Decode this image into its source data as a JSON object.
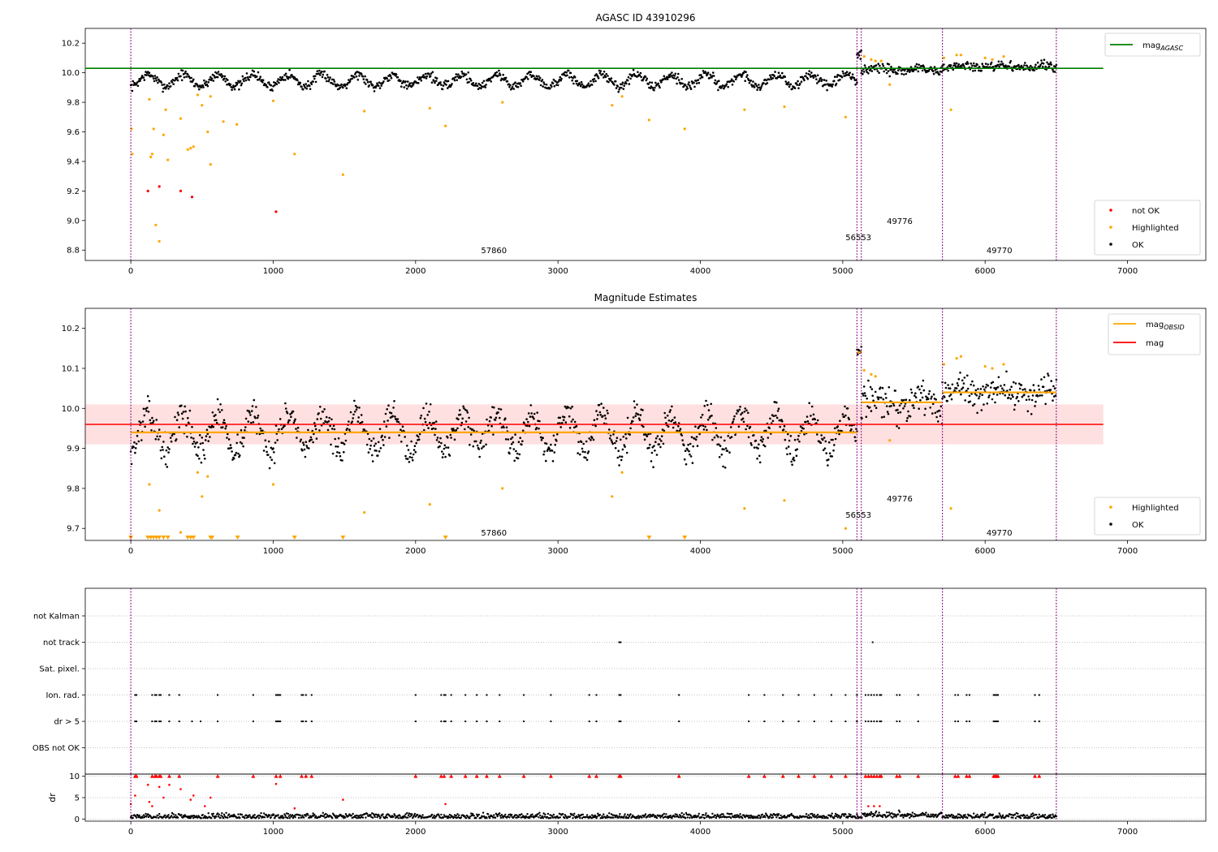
{
  "chart_data": [
    {
      "type": "scatter",
      "title": "AGASC ID 43910296",
      "xlabel": "",
      "ylabel": "",
      "xlim": [
        -320,
        7550
      ],
      "ylim": [
        8.73,
        10.3
      ],
      "xticks": [
        0,
        1000,
        2000,
        3000,
        4000,
        5000,
        6000,
        7000
      ],
      "yticks": [
        8.8,
        9.0,
        9.2,
        9.4,
        9.6,
        9.8,
        10.0,
        10.2
      ],
      "ytick_labels": [
        "8.8",
        "9.0",
        "9.2",
        "9.4",
        "9.6",
        "9.8",
        "10.0",
        "10.2"
      ],
      "grid": false,
      "legend_position": "top-right and bottom-right",
      "legend": [
        {
          "label": "mag",
          "sub": "AGASC",
          "kind": "line",
          "color": "#008000"
        },
        {
          "label": "not OK",
          "kind": "dot",
          "color": "#ff0000"
        },
        {
          "label": "Highlighted",
          "kind": "dot",
          "color": "#ffa500"
        },
        {
          "label": "OK",
          "kind": "dot",
          "color": "#000000"
        }
      ],
      "reference_line": {
        "name": "mag_AGASC",
        "y": 10.03,
        "x_range": [
          -320,
          6830
        ],
        "color": "#008000"
      },
      "obsid_boundaries": [
        0,
        5100,
        5130,
        5700,
        6500
      ],
      "obsid_labels": [
        {
          "text": "57860",
          "x": 2550,
          "y": 8.8
        },
        {
          "text": "56553",
          "x": 5110,
          "y": 8.89
        },
        {
          "text": "49776",
          "x": 5400,
          "y": 9.0
        },
        {
          "text": "49770",
          "x": 6100,
          "y": 8.8
        }
      ],
      "ok_segments": [
        {
          "x0": 0,
          "x1": 5100,
          "base": 9.948,
          "amp": 0.04,
          "period": 245,
          "noise": 0.016
        },
        {
          "x0": 5100,
          "x1": 5130,
          "base": 10.13,
          "amp": 0,
          "period": 1,
          "noise": 0.03
        },
        {
          "x0": 5130,
          "x1": 5700,
          "base": 10.02,
          "amp": 0.01,
          "period": 300,
          "noise": 0.018
        },
        {
          "x0": 5700,
          "x1": 6500,
          "base": 10.04,
          "amp": 0.008,
          "period": 300,
          "noise": 0.016
        }
      ],
      "highlighted_points": [
        [
          5,
          9.62
        ],
        [
          10,
          9.45
        ],
        [
          130,
          9.82
        ],
        [
          140,
          9.43
        ],
        [
          150,
          9.45
        ],
        [
          160,
          9.62
        ],
        [
          175,
          8.97
        ],
        [
          200,
          8.86
        ],
        [
          230,
          9.58
        ],
        [
          245,
          9.75
        ],
        [
          260,
          9.41
        ],
        [
          350,
          9.69
        ],
        [
          400,
          9.48
        ],
        [
          420,
          9.49
        ],
        [
          440,
          9.5
        ],
        [
          470,
          9.85
        ],
        [
          500,
          9.78
        ],
        [
          540,
          9.6
        ],
        [
          560,
          9.84
        ],
        [
          560,
          9.38
        ],
        [
          650,
          9.67
        ],
        [
          745,
          9.65
        ],
        [
          1000,
          9.81
        ],
        [
          1150,
          9.45
        ],
        [
          1490,
          9.31
        ],
        [
          1640,
          9.74
        ],
        [
          2100,
          9.76
        ],
        [
          2210,
          9.64
        ],
        [
          2610,
          9.8
        ],
        [
          3380,
          9.78
        ],
        [
          3450,
          9.84
        ],
        [
          3640,
          9.68
        ],
        [
          3890,
          9.62
        ],
        [
          4310,
          9.75
        ],
        [
          4590,
          9.77
        ],
        [
          5020,
          9.7
        ],
        [
          5150,
          10.11
        ],
        [
          5200,
          10.09
        ],
        [
          5230,
          10.08
        ],
        [
          5270,
          10.08
        ],
        [
          5330,
          9.92
        ],
        [
          5710,
          10.1
        ],
        [
          5760,
          9.75
        ],
        [
          5800,
          10.12
        ],
        [
          5830,
          10.12
        ],
        [
          6000,
          10.1
        ],
        [
          6050,
          10.09
        ],
        [
          6130,
          10.11
        ]
      ],
      "not_ok_points": [
        [
          120,
          9.2
        ],
        [
          200,
          9.23
        ],
        [
          350,
          9.2
        ],
        [
          430,
          9.16
        ],
        [
          1020,
          9.06
        ]
      ]
    },
    {
      "type": "scatter",
      "title": "Magnitude Estimates",
      "xlabel": "",
      "ylabel": "",
      "xlim": [
        -320,
        7550
      ],
      "ylim": [
        9.67,
        10.25
      ],
      "xticks": [
        0,
        1000,
        2000,
        3000,
        4000,
        5000,
        6000,
        7000
      ],
      "yticks": [
        9.7,
        9.8,
        9.9,
        10.0,
        10.1,
        10.2
      ],
      "ytick_labels": [
        "9.7",
        "9.8",
        "9.9",
        "10.0",
        "10.1",
        "10.2"
      ],
      "grid": false,
      "legend_position": "top-right and bottom-right",
      "legend": [
        {
          "label": "mag",
          "sub": "OBSID",
          "kind": "line",
          "color": "#ffa500"
        },
        {
          "label": "mag",
          "kind": "line",
          "color": "#ff0000"
        },
        {
          "label": "Highlighted",
          "kind": "dot",
          "color": "#ffa500"
        },
        {
          "label": "OK",
          "kind": "dot",
          "color": "#000000"
        }
      ],
      "mag_line": {
        "y": 9.96,
        "band": [
          9.91,
          10.01
        ],
        "x_range": [
          -320,
          6830
        ],
        "color": "#ff0000"
      },
      "obsid_mags": [
        {
          "x0": 0,
          "x1": 5100,
          "y": 9.94
        },
        {
          "x0": 5100,
          "x1": 5130,
          "y": 10.14
        },
        {
          "x0": 5130,
          "x1": 5700,
          "y": 10.015
        },
        {
          "x0": 5700,
          "x1": 6500,
          "y": 10.04
        }
      ],
      "obsid_boundaries": [
        0,
        5100,
        5130,
        5700,
        6500
      ],
      "obsid_labels": [
        {
          "text": "57860",
          "x": 2550,
          "y": 9.69
        },
        {
          "text": "56553",
          "x": 5110,
          "y": 9.735
        },
        {
          "text": "49776",
          "x": 5400,
          "y": 9.775
        },
        {
          "text": "49770",
          "x": 6100,
          "y": 9.69
        }
      ],
      "ok_segments": [
        {
          "x0": 0,
          "x1": 5100,
          "base": 9.94,
          "amp": 0.045,
          "period": 245,
          "noise": 0.018
        },
        {
          "x0": 5100,
          "x1": 5130,
          "base": 10.14,
          "amp": 0,
          "period": 1,
          "noise": 0.012
        },
        {
          "x0": 5130,
          "x1": 5700,
          "base": 10.015,
          "amp": 0.012,
          "period": 300,
          "noise": 0.022
        },
        {
          "x0": 5700,
          "x1": 6500,
          "base": 10.04,
          "amp": 0.01,
          "period": 300,
          "noise": 0.02
        }
      ],
      "highlighted_points": [
        [
          130,
          9.81
        ],
        [
          200,
          9.745
        ],
        [
          350,
          9.69
        ],
        [
          470,
          9.84
        ],
        [
          500,
          9.78
        ],
        [
          540,
          9.83
        ],
        [
          1000,
          9.81
        ],
        [
          1640,
          9.74
        ],
        [
          2100,
          9.76
        ],
        [
          2610,
          9.8
        ],
        [
          3380,
          9.78
        ],
        [
          3450,
          9.84
        ],
        [
          4310,
          9.75
        ],
        [
          4590,
          9.77
        ],
        [
          5020,
          9.7
        ],
        [
          5150,
          10.095
        ],
        [
          5200,
          10.085
        ],
        [
          5230,
          10.08
        ],
        [
          5330,
          9.92
        ],
        [
          5710,
          10.11
        ],
        [
          5760,
          9.75
        ],
        [
          5800,
          10.125
        ],
        [
          5830,
          10.13
        ],
        [
          6000,
          10.105
        ],
        [
          6050,
          10.1
        ],
        [
          6130,
          10.11
        ]
      ],
      "below_range_markers": [
        0,
        120,
        140,
        160,
        180,
        200,
        230,
        260,
        400,
        420,
        440,
        560,
        570,
        750,
        1150,
        1490,
        2210,
        3640,
        3890
      ]
    },
    {
      "type": "scatter",
      "title": "",
      "xlabel": "",
      "ylabel": "",
      "xlim": [
        -320,
        7550
      ],
      "xticks": [
        0,
        1000,
        2000,
        3000,
        4000,
        5000,
        6000,
        7000
      ],
      "categories": [
        "not Kalman",
        "not track",
        "Sat. pixel.",
        "Ion. rad.",
        "dr > 5",
        "OBS not OK"
      ],
      "grid": true,
      "obsid_boundaries": [
        0,
        5100,
        5130,
        5700,
        6500
      ],
      "flags": {
        "not track": [
          3430,
          3440,
          5210
        ],
        "Ion. rad.": [
          30,
          40,
          150,
          170,
          180,
          200,
          210,
          270,
          340,
          610,
          860,
          1020,
          1030,
          1040,
          1050,
          1200,
          1210,
          1230,
          1270,
          2000,
          2180,
          2200,
          2210,
          2250,
          2350,
          2430,
          2500,
          2590,
          2760,
          2950,
          3220,
          3270,
          3430,
          3440,
          3850,
          4340,
          4450,
          4580,
          4690,
          4800,
          4920,
          5020,
          5100,
          5160,
          5180,
          5200,
          5220,
          5240,
          5260,
          5270,
          5380,
          5400,
          5530,
          5790,
          5810,
          5870,
          5890,
          6060,
          6070,
          6080,
          6090,
          6350,
          6380
        ],
        "dr > 5": [
          30,
          40,
          150,
          170,
          180,
          200,
          210,
          270,
          340,
          430,
          490,
          610,
          860,
          1020,
          1030,
          1040,
          1050,
          1200,
          1210,
          1230,
          1270,
          2000,
          2180,
          2200,
          2210,
          2250,
          2350,
          2430,
          2500,
          2590,
          2760,
          2950,
          3220,
          3270,
          3430,
          3440,
          3850,
          4340,
          4450,
          4580,
          4690,
          4800,
          4920,
          5020,
          5100,
          5160,
          5180,
          5200,
          5220,
          5240,
          5260,
          5270,
          5380,
          5400,
          5530,
          5790,
          5810,
          5870,
          5890,
          6060,
          6070,
          6080,
          6090,
          6350,
          6380
        ]
      }
    },
    {
      "type": "scatter",
      "title": "",
      "xlabel": "",
      "ylabel": "dr",
      "xlim": [
        -320,
        7550
      ],
      "ylim": [
        -0.5,
        10.5
      ],
      "xticks": [
        0,
        1000,
        2000,
        3000,
        4000,
        5000,
        6000,
        7000
      ],
      "xtick_labels": [
        "0",
        "1000",
        "2000",
        "3000",
        "4000",
        "5000",
        "6000",
        "7000"
      ],
      "yticks": [
        0,
        5,
        10
      ],
      "ytick_labels": [
        "0",
        "5",
        "10"
      ],
      "grid": true,
      "obsid_boundaries": [
        0,
        5100,
        5130,
        5700,
        6500
      ],
      "clip_markers": [
        30,
        40,
        150,
        170,
        180,
        200,
        210,
        270,
        340,
        610,
        860,
        1020,
        1050,
        1200,
        1230,
        1270,
        2000,
        2180,
        2200,
        2250,
        2350,
        2430,
        2500,
        2590,
        2760,
        2950,
        3220,
        3270,
        3430,
        3440,
        3850,
        4340,
        4450,
        4580,
        4690,
        4800,
        4920,
        5020,
        5160,
        5180,
        5200,
        5220,
        5240,
        5260,
        5270,
        5380,
        5400,
        5530,
        5790,
        5810,
        5870,
        5890,
        6060,
        6070,
        6080,
        6090,
        6350,
        6380
      ],
      "not_ok_points": [
        [
          0,
          3.5
        ],
        [
          30,
          5.5
        ],
        [
          120,
          8
        ],
        [
          130,
          4
        ],
        [
          150,
          3
        ],
        [
          200,
          7.5
        ],
        [
          230,
          5
        ],
        [
          270,
          8
        ],
        [
          350,
          7
        ],
        [
          420,
          4.5
        ],
        [
          440,
          5.5
        ],
        [
          520,
          3
        ],
        [
          560,
          5
        ],
        [
          1020,
          8.2
        ],
        [
          1150,
          2.5
        ],
        [
          1490,
          4.5
        ],
        [
          2210,
          3.5
        ],
        [
          5180,
          3
        ],
        [
          5220,
          3
        ],
        [
          5260,
          3
        ]
      ]
    }
  ]
}
